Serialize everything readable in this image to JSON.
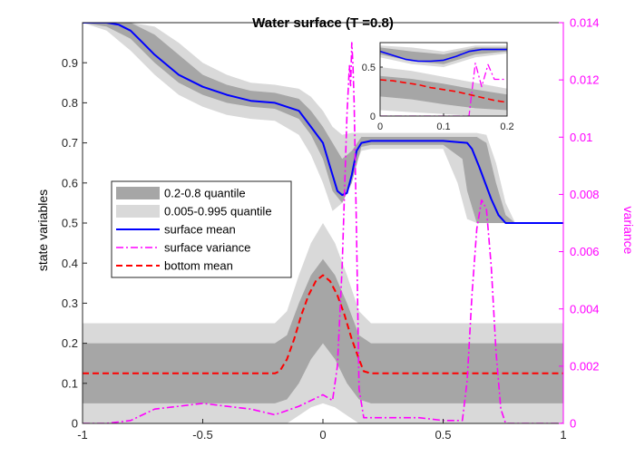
{
  "chart_data": [
    {
      "type": "line",
      "title": "Water surface (T =0.8)",
      "xlabel": "",
      "ylabel": "state variables",
      "ylabel_right": "variance",
      "xlim": [
        -1,
        1
      ],
      "ylim": [
        0,
        1
      ],
      "ylim_right": [
        0,
        0.014
      ],
      "x_ticks": [
        "-1",
        "-0.5",
        "0",
        "0.5",
        "1"
      ],
      "y_ticks": [
        "0",
        "0.1",
        "0.2",
        "0.3",
        "0.4",
        "0.5",
        "0.6",
        "0.7",
        "0.8",
        "0.9"
      ],
      "y_ticks_right": [
        "0",
        "0.002",
        "0.004",
        "0.006",
        "0.008",
        "0.01",
        "0.012",
        "0.014"
      ],
      "grid": false,
      "legend_position": "center-left",
      "colors": {
        "quantile_inner": "#a6a6a6",
        "quantile_outer": "#d9d9d9",
        "surface_mean": "#0000ff",
        "surface_variance": "#ff00ff",
        "bottom_mean": "#ff0000"
      },
      "legend": [
        {
          "label": "0.2-0.8 quantile",
          "style": "patch-dark"
        },
        {
          "label": "0.005-0.995 quantile",
          "style": "patch-light"
        },
        {
          "label": "surface mean",
          "style": "solid-blue"
        },
        {
          "label": "surface variance",
          "style": "dashdot-magenta"
        },
        {
          "label": "bottom mean",
          "style": "dashed-red"
        }
      ],
      "series": [
        {
          "name": "surface mean",
          "x": [
            -1,
            -0.9,
            -0.85,
            -0.8,
            -0.75,
            -0.7,
            -0.6,
            -0.5,
            -0.4,
            -0.3,
            -0.2,
            -0.1,
            -0.05,
            0,
            0.03,
            0.06,
            0.08,
            0.1,
            0.12,
            0.14,
            0.16,
            0.2,
            0.3,
            0.4,
            0.5,
            0.6,
            0.62,
            0.65,
            0.7,
            0.73,
            0.76,
            0.8,
            0.9,
            1
          ],
          "values": [
            1.0,
            1.0,
            0.995,
            0.98,
            0.95,
            0.92,
            0.87,
            0.84,
            0.82,
            0.805,
            0.8,
            0.78,
            0.74,
            0.7,
            0.64,
            0.58,
            0.57,
            0.575,
            0.62,
            0.68,
            0.7,
            0.705,
            0.705,
            0.705,
            0.705,
            0.7,
            0.685,
            0.64,
            0.56,
            0.52,
            0.5,
            0.5,
            0.5,
            0.5
          ]
        },
        {
          "name": "bottom mean",
          "x": [
            -1,
            -0.5,
            -0.2,
            -0.18,
            -0.15,
            -0.12,
            -0.09,
            -0.06,
            -0.03,
            0,
            0.03,
            0.06,
            0.09,
            0.12,
            0.15,
            0.17,
            0.2,
            0.5,
            1
          ],
          "values": [
            0.125,
            0.125,
            0.125,
            0.13,
            0.16,
            0.21,
            0.27,
            0.32,
            0.355,
            0.37,
            0.355,
            0.32,
            0.27,
            0.21,
            0.16,
            0.13,
            0.125,
            0.125,
            0.125
          ]
        },
        {
          "name": "surface variance",
          "axis": "right",
          "x": [
            -1,
            -0.9,
            -0.8,
            -0.7,
            -0.6,
            -0.5,
            -0.4,
            -0.3,
            -0.2,
            -0.1,
            0,
            0.04,
            0.06,
            0.08,
            0.1,
            0.11,
            0.115,
            0.12,
            0.125,
            0.13,
            0.14,
            0.15,
            0.17,
            0.2,
            0.3,
            0.4,
            0.5,
            0.58,
            0.6,
            0.62,
            0.64,
            0.66,
            0.68,
            0.7,
            0.72,
            0.74,
            0.76,
            0.8,
            0.9,
            1
          ],
          "values": [
            0,
            0,
            0.0001,
            0.0005,
            0.0006,
            0.0007,
            0.0006,
            0.0005,
            0.0003,
            0.0006,
            0.001,
            0.0008,
            0.002,
            0.0055,
            0.0108,
            0.0125,
            0.0118,
            0.0133,
            0.0125,
            0.0112,
            0.0065,
            0.0012,
            0.0002,
            0.0002,
            0.0002,
            0.0002,
            0.0001,
            0.0001,
            0.0015,
            0.0045,
            0.0068,
            0.0078,
            0.0075,
            0.0055,
            0.0025,
            0.0005,
            0,
            0,
            0,
            0
          ]
        }
      ],
      "bands": [
        {
          "name": "0.005-0.995 quantile (surface)",
          "x": [
            -1,
            -0.9,
            -0.8,
            -0.7,
            -0.6,
            -0.5,
            -0.4,
            -0.3,
            -0.2,
            -0.1,
            -0.05,
            0,
            0.04,
            0.08,
            0.12,
            0.16,
            0.2,
            0.5,
            0.56,
            0.6,
            0.64,
            0.68,
            0.72,
            0.76,
            0.8,
            1
          ],
          "lower": [
            1.0,
            0.98,
            0.93,
            0.87,
            0.82,
            0.79,
            0.77,
            0.76,
            0.755,
            0.72,
            0.67,
            0.6,
            0.53,
            0.55,
            0.62,
            0.68,
            0.685,
            0.685,
            0.6,
            0.51,
            0.5,
            0.5,
            0.5,
            0.5,
            0.5,
            0.5
          ],
          "upper": [
            1.0,
            1.0,
            1.0,
            0.99,
            0.95,
            0.9,
            0.87,
            0.85,
            0.845,
            0.835,
            0.815,
            0.78,
            0.74,
            0.72,
            0.725,
            0.725,
            0.725,
            0.725,
            0.725,
            0.725,
            0.725,
            0.72,
            0.65,
            0.55,
            0.5,
            0.5
          ]
        },
        {
          "name": "0.2-0.8 quantile (surface)",
          "x": [
            -1,
            -0.9,
            -0.8,
            -0.7,
            -0.6,
            -0.5,
            -0.4,
            -0.3,
            -0.2,
            -0.1,
            -0.05,
            0,
            0.04,
            0.08,
            0.12,
            0.16,
            0.2,
            0.5,
            0.58,
            0.6,
            0.64,
            0.68,
            0.72,
            0.76,
            0.8,
            1
          ],
          "lower": [
            1.0,
            0.99,
            0.96,
            0.9,
            0.85,
            0.82,
            0.8,
            0.79,
            0.785,
            0.76,
            0.72,
            0.66,
            0.58,
            0.55,
            0.6,
            0.69,
            0.695,
            0.695,
            0.66,
            0.58,
            0.5,
            0.5,
            0.5,
            0.5,
            0.5,
            0.5
          ],
          "upper": [
            1.0,
            1.0,
            1.0,
            0.97,
            0.92,
            0.87,
            0.845,
            0.83,
            0.825,
            0.81,
            0.78,
            0.74,
            0.7,
            0.66,
            0.68,
            0.715,
            0.715,
            0.715,
            0.715,
            0.715,
            0.715,
            0.7,
            0.6,
            0.52,
            0.5,
            0.5
          ]
        },
        {
          "name": "0.005-0.995 quantile (bottom)",
          "x": [
            -1,
            -0.5,
            -0.2,
            -0.15,
            -0.1,
            -0.05,
            0,
            0.05,
            0.1,
            0.15,
            0.2,
            0.5,
            1
          ],
          "lower": [
            0.0,
            0.0,
            0.0,
            0.0,
            0.02,
            0.04,
            0.05,
            0.04,
            0.02,
            0.0,
            0.0,
            0.0,
            0.0
          ],
          "upper": [
            0.25,
            0.25,
            0.25,
            0.28,
            0.37,
            0.45,
            0.5,
            0.45,
            0.37,
            0.28,
            0.25,
            0.25,
            0.25
          ]
        },
        {
          "name": "0.2-0.8 quantile (bottom)",
          "x": [
            -1,
            -0.5,
            -0.2,
            -0.15,
            -0.1,
            -0.05,
            0,
            0.05,
            0.1,
            0.15,
            0.2,
            0.5,
            1
          ],
          "lower": [
            0.05,
            0.05,
            0.05,
            0.06,
            0.1,
            0.16,
            0.2,
            0.16,
            0.1,
            0.06,
            0.05,
            0.05,
            0.05
          ],
          "upper": [
            0.2,
            0.2,
            0.2,
            0.22,
            0.3,
            0.37,
            0.41,
            0.37,
            0.3,
            0.22,
            0.2,
            0.2,
            0.2
          ]
        }
      ]
    },
    {
      "type": "line",
      "title": "",
      "xlim": [
        0,
        0.2
      ],
      "ylim": [
        0,
        0.75
      ],
      "x_ticks": [
        "0",
        "0.1",
        "0.2"
      ],
      "y_ticks": [
        "0",
        "0.5"
      ],
      "series": [
        {
          "name": "surface mean",
          "x": [
            0,
            0.02,
            0.04,
            0.06,
            0.08,
            0.1,
            0.12,
            0.14,
            0.16,
            0.18,
            0.2
          ],
          "values": [
            0.66,
            0.62,
            0.58,
            0.56,
            0.56,
            0.57,
            0.61,
            0.66,
            0.68,
            0.68,
            0.68
          ]
        },
        {
          "name": "bottom mean",
          "x": [
            0,
            0.02,
            0.04,
            0.06,
            0.08,
            0.1,
            0.12,
            0.14,
            0.16,
            0.18,
            0.2
          ],
          "values": [
            0.37,
            0.36,
            0.34,
            0.32,
            0.29,
            0.27,
            0.25,
            0.22,
            0.19,
            0.16,
            0.14
          ]
        },
        {
          "name": "surface variance",
          "axis": "right",
          "x": [
            0,
            0.05,
            0.1,
            0.14,
            0.15,
            0.16,
            0.17,
            0.18,
            0.2
          ],
          "values": [
            0,
            0,
            0,
            0,
            0.72,
            0.4,
            0.7,
            0.5,
            0.5
          ]
        }
      ],
      "bands": [
        {
          "name": "0.005-0.995 quantile (surface)",
          "x": [
            0,
            0.05,
            0.1,
            0.15,
            0.2
          ],
          "lower": [
            0.6,
            0.53,
            0.5,
            0.6,
            0.64
          ],
          "upper": [
            0.72,
            0.7,
            0.66,
            0.72,
            0.72
          ]
        },
        {
          "name": "0.2-0.8 quantile (surface)",
          "x": [
            0,
            0.05,
            0.1,
            0.15,
            0.2
          ],
          "lower": [
            0.63,
            0.56,
            0.53,
            0.63,
            0.66
          ],
          "upper": [
            0.7,
            0.66,
            0.63,
            0.7,
            0.7
          ]
        },
        {
          "name": "0.005-0.995 quantile (bottom)",
          "x": [
            0,
            0.05,
            0.1,
            0.15,
            0.2
          ],
          "lower": [
            0.06,
            0.04,
            0.02,
            0.0,
            0.0
          ],
          "upper": [
            0.5,
            0.46,
            0.4,
            0.34,
            0.28
          ]
        },
        {
          "name": "0.2-0.8 quantile (bottom)",
          "x": [
            0,
            0.05,
            0.1,
            0.15,
            0.2
          ],
          "lower": [
            0.2,
            0.17,
            0.12,
            0.08,
            0.06
          ],
          "upper": [
            0.41,
            0.38,
            0.33,
            0.27,
            0.22
          ]
        }
      ]
    }
  ]
}
